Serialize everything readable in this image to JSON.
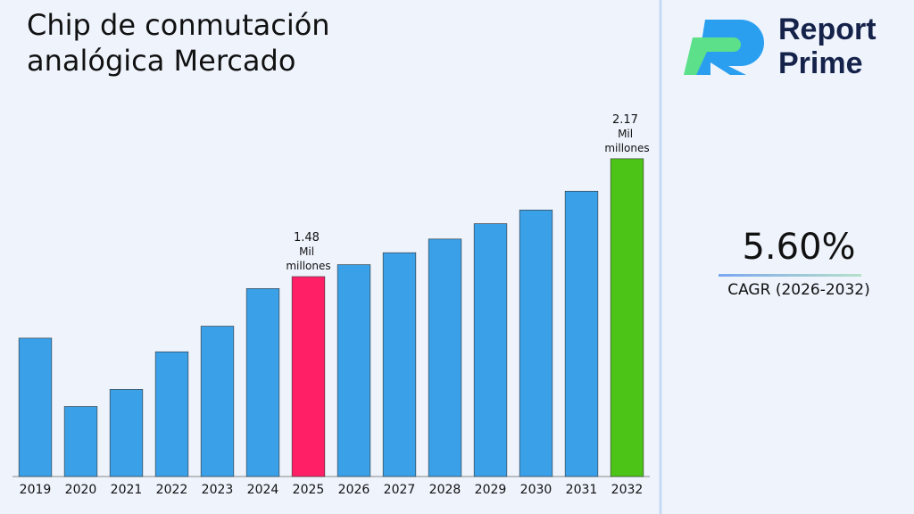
{
  "chart_data": {
    "type": "bar",
    "title": "Chip de conmutación analógica Mercado",
    "categories": [
      "2019",
      "2020",
      "2021",
      "2022",
      "2023",
      "2024",
      "2025",
      "2026",
      "2027",
      "2028",
      "2029",
      "2030",
      "2031",
      "2032"
    ],
    "values": [
      1.12,
      0.72,
      0.82,
      1.04,
      1.19,
      1.41,
      1.48,
      1.55,
      1.62,
      1.7,
      1.79,
      1.87,
      1.98,
      2.17
    ],
    "value_labels": [
      null,
      null,
      null,
      null,
      null,
      null,
      "1.48 Mil millones",
      null,
      null,
      null,
      null,
      null,
      null,
      "2.17 Mil millones"
    ],
    "colors": [
      "#3aa0e8",
      "#3aa0e8",
      "#3aa0e8",
      "#3aa0e8",
      "#3aa0e8",
      "#3aa0e8",
      "#ff1f66",
      "#3aa0e8",
      "#3aa0e8",
      "#3aa0e8",
      "#3aa0e8",
      "#3aa0e8",
      "#3aa0e8",
      "#4cc417"
    ],
    "ylim": [
      0.31,
      2.42
    ],
    "grid": false
  },
  "brand": "Report Prime",
  "cagr": {
    "value": "5.60%",
    "label": "CAGR (2026-2032)"
  }
}
